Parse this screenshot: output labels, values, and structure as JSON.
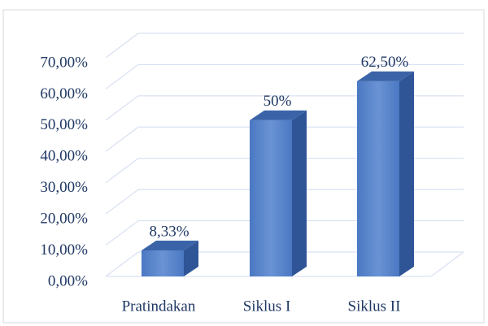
{
  "chart_data": {
    "type": "bar3d",
    "categories": [
      "Pratindakan",
      "Siklus I",
      "Siklus II"
    ],
    "values": [
      8.33,
      50,
      62.5
    ],
    "value_labels": [
      "8,33%",
      "50%",
      "62,50%"
    ],
    "color": "#4472c4",
    "ylim": [
      0,
      70
    ],
    "yticks": [
      {
        "value": 0,
        "label": "0,00%"
      },
      {
        "value": 10,
        "label": "10,00%"
      },
      {
        "value": 20,
        "label": "20,00%"
      },
      {
        "value": 30,
        "label": "30,00%"
      },
      {
        "value": 40,
        "label": "40,00%"
      },
      {
        "value": 50,
        "label": "50,00%"
      },
      {
        "value": 60,
        "label": "60,00%"
      },
      {
        "value": 70,
        "label": "70,00%"
      }
    ],
    "grid": true
  }
}
